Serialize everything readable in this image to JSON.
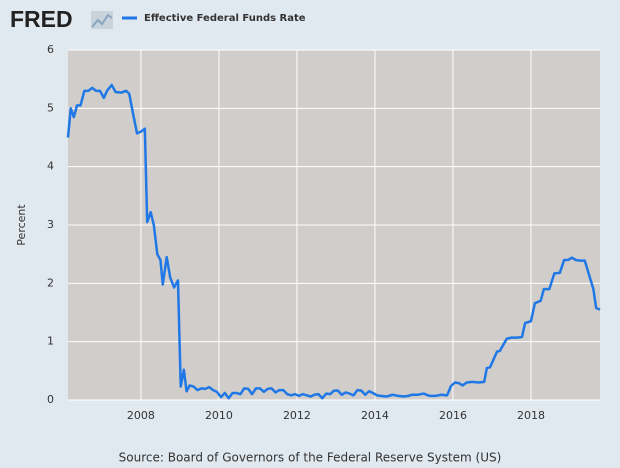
{
  "chart_data": {
    "type": "line",
    "logo": "FRED",
    "y_label": "Percent",
    "source": "Source: Board of Governors of the Federal Reserve System (US)",
    "x": [
      2006.13,
      2006.2,
      2006.28,
      2006.36,
      2006.45,
      2006.55,
      2006.65,
      2006.75,
      2006.85,
      2006.95,
      2007.05,
      2007.13,
      2007.25,
      2007.35,
      2007.5,
      2007.62,
      2007.7,
      2007.8,
      2007.9,
      2008.0,
      2008.1,
      2008.16,
      2008.25,
      2008.33,
      2008.42,
      2008.5,
      2008.56,
      2008.66,
      2008.75,
      2008.85,
      2008.95,
      2009.02,
      2009.1,
      2009.17,
      2009.25,
      2009.35,
      2009.45,
      2009.55,
      2009.65,
      2009.75,
      2009.85,
      2009.95,
      2010.05,
      2010.15,
      2010.25,
      2010.35,
      2010.45,
      2010.55,
      2010.65,
      2010.75,
      2010.85,
      2010.95,
      2011.05,
      2011.15,
      2011.25,
      2011.35,
      2011.45,
      2011.55,
      2011.65,
      2011.75,
      2011.85,
      2011.95,
      2012.05,
      2012.15,
      2012.25,
      2012.35,
      2012.45,
      2012.55,
      2012.65,
      2012.75,
      2012.85,
      2012.95,
      2013.05,
      2013.15,
      2013.25,
      2013.35,
      2013.45,
      2013.55,
      2013.65,
      2013.75,
      2013.85,
      2013.95,
      2014.05,
      2014.15,
      2014.3,
      2014.45,
      2014.6,
      2014.75,
      2014.85,
      2014.95,
      2015.1,
      2015.25,
      2015.4,
      2015.55,
      2015.7,
      2015.85,
      2015.95,
      2016.05,
      2016.15,
      2016.25,
      2016.35,
      2016.5,
      2016.65,
      2016.8,
      2016.87,
      2016.95,
      2017.13,
      2017.2,
      2017.38,
      2017.5,
      2017.65,
      2017.77,
      2017.85,
      2018.0,
      2018.1,
      2018.25,
      2018.33,
      2018.47,
      2018.6,
      2018.74,
      2018.85,
      2018.95,
      2019.05,
      2019.15,
      2019.25,
      2019.38,
      2019.6,
      2019.67,
      2019.77
    ],
    "series": [
      {
        "name": "Effective Federal Funds Rate",
        "color": "#1f78e6",
        "values": [
          4.5,
          5.0,
          4.85,
          5.05,
          5.05,
          5.3,
          5.3,
          5.35,
          5.3,
          5.3,
          5.18,
          5.3,
          5.4,
          5.28,
          5.27,
          5.3,
          5.25,
          4.9,
          4.57,
          4.6,
          4.65,
          3.05,
          3.22,
          3.0,
          2.5,
          2.4,
          1.98,
          2.45,
          2.1,
          1.93,
          2.05,
          0.23,
          0.52,
          0.15,
          0.25,
          0.23,
          0.17,
          0.2,
          0.19,
          0.22,
          0.17,
          0.14,
          0.05,
          0.12,
          0.03,
          0.12,
          0.12,
          0.1,
          0.2,
          0.19,
          0.1,
          0.2,
          0.2,
          0.14,
          0.19,
          0.2,
          0.13,
          0.17,
          0.17,
          0.1,
          0.08,
          0.1,
          0.07,
          0.1,
          0.08,
          0.06,
          0.09,
          0.1,
          0.03,
          0.11,
          0.1,
          0.16,
          0.16,
          0.09,
          0.13,
          0.11,
          0.08,
          0.17,
          0.16,
          0.09,
          0.15,
          0.12,
          0.08,
          0.07,
          0.06,
          0.09,
          0.07,
          0.06,
          0.07,
          0.09,
          0.09,
          0.11,
          0.07,
          0.07,
          0.09,
          0.08,
          0.24,
          0.3,
          0.29,
          0.25,
          0.3,
          0.31,
          0.3,
          0.31,
          0.55,
          0.56,
          0.83,
          0.84,
          1.05,
          1.07,
          1.07,
          1.08,
          1.32,
          1.35,
          1.66,
          1.7,
          1.9,
          1.9,
          2.17,
          2.18,
          2.4,
          2.4,
          2.44,
          2.4,
          2.39,
          2.39,
          1.9,
          1.58,
          1.55
        ]
      }
    ],
    "xlim": [
      2006.13,
      2019.77
    ],
    "xticks": [
      2008,
      2010,
      2012,
      2014,
      2016,
      2018
    ],
    "ylim": [
      0,
      6
    ],
    "yticks": [
      0,
      1,
      2,
      3,
      4,
      5,
      6
    ],
    "grid": true,
    "plot_background": "#d0cdca"
  }
}
